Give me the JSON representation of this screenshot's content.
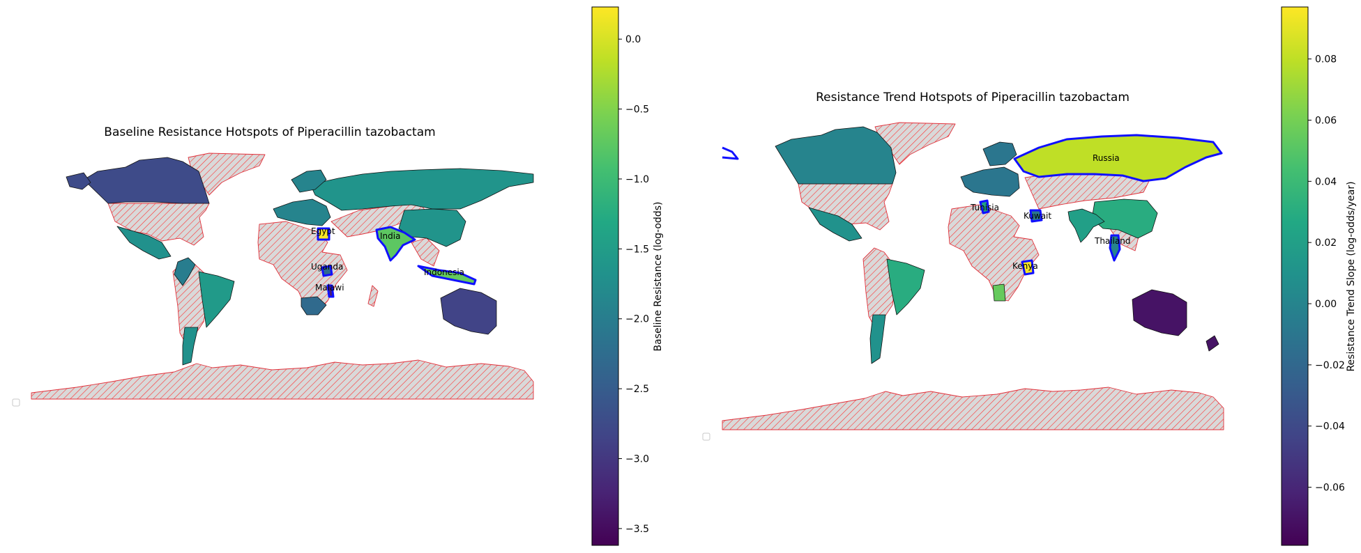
{
  "colors": {
    "hotspot_outline": "#0000ff",
    "missing_hatch": "#ff0000",
    "missing_fill": "#d9d9d9",
    "colormap": "viridis"
  },
  "chart_data": [
    {
      "type": "map",
      "title": "Baseline Resistance Hotspots of Piperacillin tazobactam",
      "colorbar_label": "Baseline Resistance (log-odds)",
      "colorbar_range": [
        -3.62,
        0.23
      ],
      "colorbar_ticks": [
        "0.0",
        "−0.5",
        "−1.0",
        "−1.5",
        "−2.0",
        "−2.5",
        "−3.0",
        "−3.5"
      ],
      "hotspot_labels": [
        "Egypt",
        "India",
        "Uganda",
        "Indonesia",
        "Malawi"
      ],
      "values": {
        "Canada": -2.75,
        "Russia": -1.65,
        "Brazil": -1.55,
        "Australia": -2.85,
        "India": -0.75,
        "Egypt": 0.2,
        "Uganda": -2.3,
        "Malawi": -3.3,
        "Indonesia": -0.7,
        "China": -1.65,
        "Mexico": -1.7,
        "Peru": -2.0,
        "Argentina": -1.7,
        "Europe": -1.9,
        "South Africa": -2.3
      }
    },
    {
      "type": "map",
      "title": "Resistance Trend Hotspots of Piperacillin tazobactam",
      "colorbar_label": "Resistance Trend Slope (log-odds/year)",
      "colorbar_range": [
        -0.079,
        0.097
      ],
      "colorbar_ticks": [
        "0.08",
        "0.06",
        "0.04",
        "0.02",
        "0.00",
        "−0.02",
        "−0.04",
        "−0.06"
      ],
      "hotspot_labels": [
        "Russia",
        "Tunisia",
        "Kuwait",
        "Thailand",
        "Kenya"
      ],
      "values": {
        "Canada": 0.0,
        "Russia": 0.08,
        "Brazil": 0.03,
        "Australia": -0.07,
        "China": 0.03,
        "India": 0.02,
        "Mexico": 0.01,
        "Kenya": 0.095,
        "Tunisia": 0.02,
        "Kuwait": -0.01,
        "Thailand": 0.0,
        "Angola": 0.055,
        "Argentina": 0.01,
        "Europe": -0.01,
        "New Zealand": -0.07
      }
    }
  ]
}
